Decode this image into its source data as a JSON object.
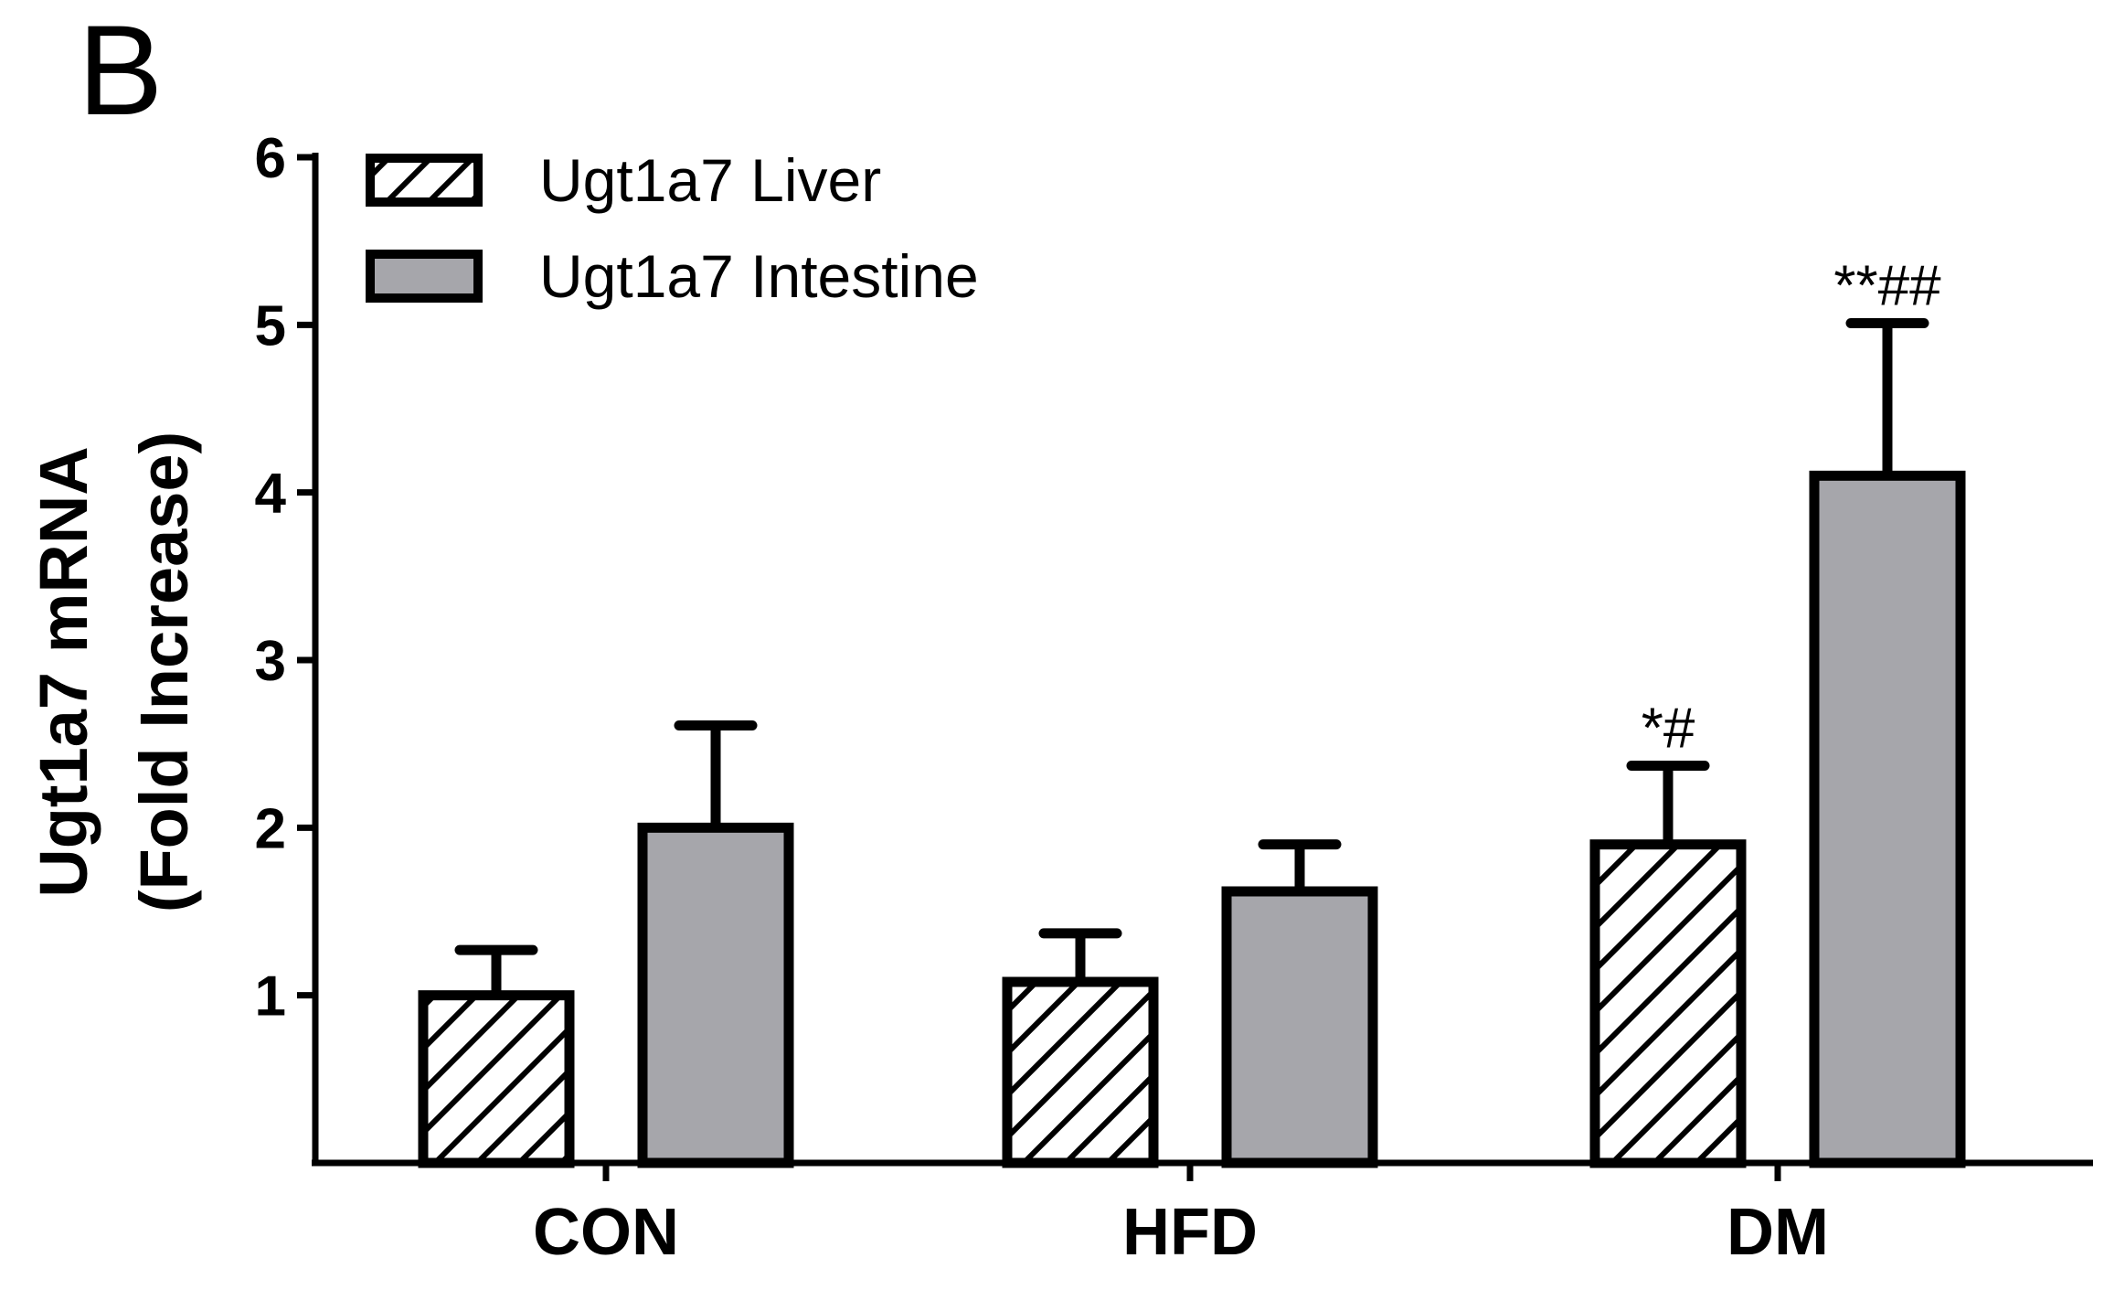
{
  "panel_label": "B",
  "chart_data": {
    "type": "bar",
    "categories": [
      "CON",
      "HFD",
      "DM"
    ],
    "ylabel_line1": "Ugt1a7 mRNA",
    "ylabel_line2": "(Fold Increase)",
    "ylim": [
      0,
      6
    ],
    "yticks": [
      1,
      2,
      3,
      4,
      5,
      6
    ],
    "grid": false,
    "legend_position": "top-left",
    "series": [
      {
        "name": "Ugt1a7 Liver",
        "values": [
          1.0,
          1.08,
          1.9
        ],
        "errors": [
          0.27,
          0.29,
          0.47
        ],
        "fill": "hatched",
        "annotations": [
          "",
          "",
          "*#"
        ]
      },
      {
        "name": "Ugt1a7 Intestine",
        "values": [
          2.0,
          1.62,
          4.1
        ],
        "errors": [
          0.61,
          0.28,
          0.91
        ],
        "fill": "#a6a6ab",
        "annotations": [
          "",
          "",
          "**##"
        ]
      }
    ]
  }
}
